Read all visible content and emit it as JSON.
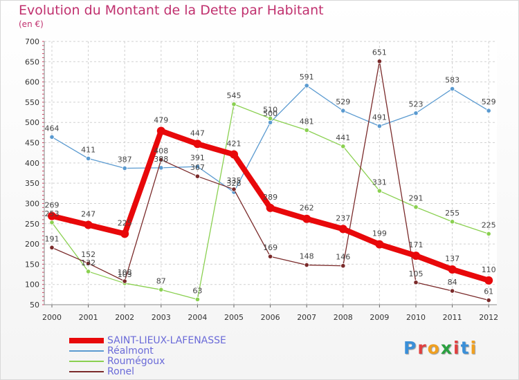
{
  "header": {
    "title": "Evolution du Montant de la Dette par Habitant",
    "unit": "(en €)"
  },
  "logo": {
    "text": "Proxiti",
    "colors": [
      "#3a8fd8",
      "#e04040",
      "#f0a020",
      "#2aa040",
      "#e04040",
      "#3a8fd8",
      "#f0a020"
    ]
  },
  "chart_data": {
    "type": "line",
    "title": "Evolution du Montant de la Dette par Habitant",
    "xlabel": "",
    "ylabel": "",
    "x": [
      2000,
      2001,
      2002,
      2003,
      2004,
      2005,
      2006,
      2007,
      2008,
      2009,
      2010,
      2011,
      2012
    ],
    "ylim": [
      50,
      700
    ],
    "yticks": [
      50,
      100,
      150,
      200,
      250,
      300,
      350,
      400,
      450,
      500,
      550,
      600,
      650,
      700
    ],
    "grid": true,
    "legend_position": "bottom-left",
    "series": [
      {
        "name": "SAINT-LIEUX-LAFENASSE",
        "color": "#e8080a",
        "values": [
          269,
          247,
          225,
          479,
          447,
          421,
          289,
          262,
          237,
          199,
          171,
          137,
          110
        ]
      },
      {
        "name": "Réalmont",
        "color": "#5a9ad0",
        "values": [
          464,
          411,
          387,
          388,
          391,
          328,
          500,
          591,
          529,
          491,
          523,
          583,
          529
        ]
      },
      {
        "name": "Roumégoux",
        "color": "#8ad050",
        "values": [
          253,
          132,
          103,
          87,
          63,
          545,
          510,
          481,
          441,
          331,
          291,
          255,
          225
        ]
      },
      {
        "name": "Ronel",
        "color": "#7a2a2a",
        "values": [
          191,
          152,
          108,
          408,
          367,
          335,
          169,
          148,
          146,
          651,
          105,
          84,
          61
        ]
      }
    ]
  }
}
